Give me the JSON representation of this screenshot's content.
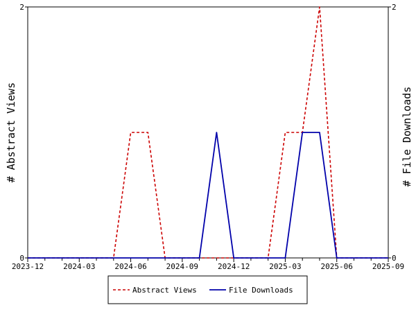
{
  "chart_data": {
    "type": "line",
    "ylabel_left": "# Abstract Views",
    "ylabel_right": "# File Downloads",
    "ylim": [
      0,
      2
    ],
    "y_ticks": [
      "0",
      "2"
    ],
    "x_ticks": [
      "2023-12",
      "2024-03",
      "2024-06",
      "2024-09",
      "2024-12",
      "2025-03",
      "2025-06",
      "2025-09"
    ],
    "x": [
      "2023-12",
      "2024-01",
      "2024-02",
      "2024-03",
      "2024-04",
      "2024-05",
      "2024-06",
      "2024-07",
      "2024-08",
      "2024-09",
      "2024-10",
      "2024-11",
      "2024-12",
      "2025-01",
      "2025-02",
      "2025-03",
      "2025-04",
      "2025-05",
      "2025-06",
      "2025-07",
      "2025-08",
      "2025-09"
    ],
    "grid": false,
    "legend_position": "bottom",
    "series": [
      {
        "name": "Abstract Views",
        "color": "#cc0000",
        "style": "dashed",
        "axis": "left",
        "values": [
          0,
          0,
          0,
          0,
          0,
          0,
          1,
          1,
          0,
          0,
          0,
          0,
          0,
          0,
          0,
          1,
          1,
          2,
          0,
          0,
          0,
          0
        ]
      },
      {
        "name": "File Downloads",
        "color": "#0000aa",
        "style": "solid",
        "axis": "right",
        "values": [
          0,
          0,
          0,
          0,
          0,
          0,
          0,
          0,
          0,
          0,
          0,
          1,
          0,
          0,
          0,
          0,
          1,
          1,
          0,
          0,
          0,
          0
        ]
      }
    ]
  }
}
